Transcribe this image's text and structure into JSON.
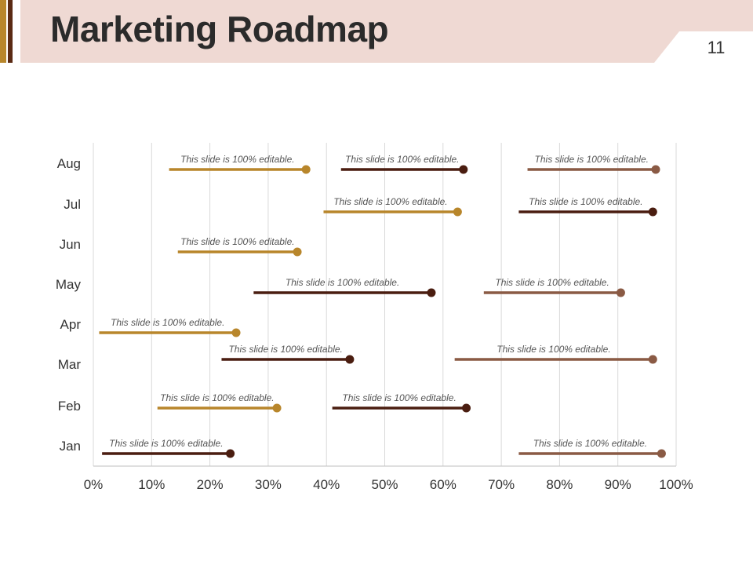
{
  "slide": {
    "title": "Marketing Roadmap",
    "page_number": "11"
  },
  "colors": {
    "header_band": "#efd9d3",
    "accent_gold": "#b8862b",
    "accent_dark": "#4a1d10",
    "accent_brown": "#8a5a44",
    "gridline": "#d9d9d9",
    "label_text": "#555555",
    "axis_text": "#333333"
  },
  "chart_data": {
    "type": "bar",
    "orientation": "horizontal",
    "categories": [
      "Aug",
      "Jul",
      "Jun",
      "May",
      "Apr",
      "Mar",
      "Feb",
      "Jan"
    ],
    "xlim": [
      0,
      100
    ],
    "x_ticks": [
      "0%",
      "10%",
      "20%",
      "30%",
      "40%",
      "50%",
      "60%",
      "70%",
      "80%",
      "90%",
      "100%"
    ],
    "grid": true,
    "legend": "none",
    "bars": [
      {
        "category": "Aug",
        "start": 13,
        "end": 36.5,
        "color": "#b8862b",
        "label": "This slide is 100% editable."
      },
      {
        "category": "Aug",
        "start": 42.5,
        "end": 63.5,
        "color": "#4a1d10",
        "label": "This slide is 100% editable."
      },
      {
        "category": "Aug",
        "start": 74.5,
        "end": 96.5,
        "color": "#8a5a44",
        "label": "This slide is 100% editable."
      },
      {
        "category": "Jul",
        "start": 39.5,
        "end": 62.5,
        "color": "#b8862b",
        "label": "This slide is 100% editable."
      },
      {
        "category": "Jul",
        "start": 73,
        "end": 96,
        "color": "#4a1d10",
        "label": "This slide is 100% editable."
      },
      {
        "category": "Jun",
        "start": 14.5,
        "end": 35,
        "color": "#b8862b",
        "label": "This slide is 100% editable."
      },
      {
        "category": "May",
        "start": 27.5,
        "end": 58,
        "color": "#4a1d10",
        "label": "This slide is 100% editable."
      },
      {
        "category": "May",
        "start": 67,
        "end": 90.5,
        "color": "#8a5a44",
        "label": "This slide is 100% editable."
      },
      {
        "category": "Apr",
        "start": 1,
        "end": 24.5,
        "color": "#b8862b",
        "label": "This slide is 100% editable."
      },
      {
        "category": "Mar",
        "start": 22,
        "end": 44,
        "color": "#4a1d10",
        "label": "This slide is 100% editable."
      },
      {
        "category": "Mar",
        "start": 62,
        "end": 96,
        "color": "#8a5a44",
        "label": "This slide is 100% editable."
      },
      {
        "category": "Feb",
        "start": 11,
        "end": 31.5,
        "color": "#b8862b",
        "label": "This slide is 100% editable."
      },
      {
        "category": "Feb",
        "start": 41,
        "end": 64,
        "color": "#4a1d10",
        "label": "This slide is 100% editable."
      },
      {
        "category": "Jan",
        "start": 1.5,
        "end": 23.5,
        "color": "#4a1d10",
        "label": "This slide is 100% editable."
      },
      {
        "category": "Jan",
        "start": 73,
        "end": 97.5,
        "color": "#8a5a44",
        "label": "This slide is 100% editable."
      }
    ]
  }
}
